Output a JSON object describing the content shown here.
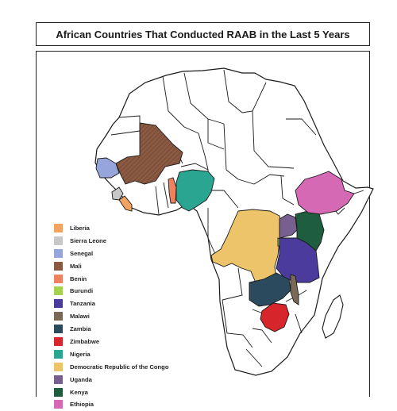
{
  "title": "African Countries That Conducted RAAB in the Last 5 Years",
  "legend": [
    {
      "label": "Liberia",
      "color": "#f2a35f"
    },
    {
      "label": "Sierra Leone",
      "color": "#c8c8c8"
    },
    {
      "label": "Senegal",
      "color": "#96a6dc"
    },
    {
      "label": "Mali",
      "color": "#8b5a42"
    },
    {
      "label": "Benin",
      "color": "#f0815e"
    },
    {
      "label": "Burundi",
      "color": "#a4d14e"
    },
    {
      "label": "Tanzania",
      "color": "#4a3b9c"
    },
    {
      "label": "Malawi",
      "color": "#7a6a55"
    },
    {
      "label": "Zambia",
      "color": "#2c4a5e"
    },
    {
      "label": "Zimbabwe",
      "color": "#d6262c"
    },
    {
      "label": "Nigeria",
      "color": "#2aa592"
    },
    {
      "label": "Democratic Republic of the Congo",
      "color": "#eec46b"
    },
    {
      "label": "Uganda",
      "color": "#776090"
    },
    {
      "label": "Kenya",
      "color": "#1e5e3f"
    },
    {
      "label": "Ethiopia",
      "color": "#d569b4"
    }
  ]
}
